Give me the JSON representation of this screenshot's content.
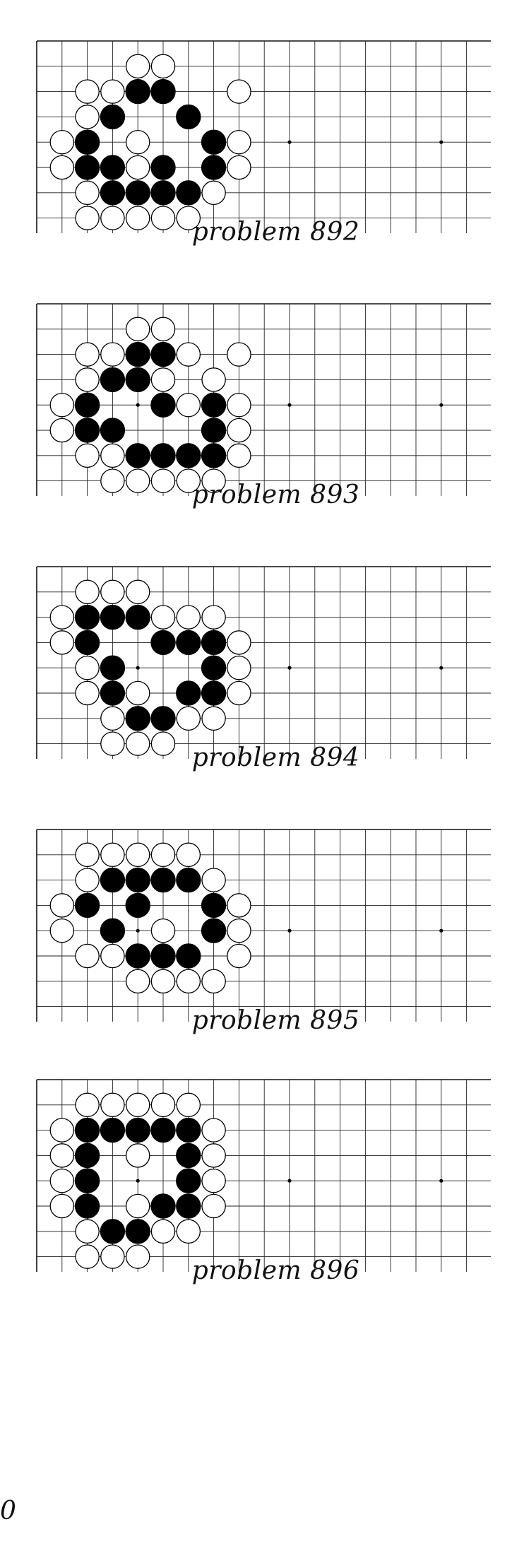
{
  "page_number": "0",
  "board": {
    "columns": 19,
    "visible_rows": 8,
    "edges": "top and left edges shown; board continues right and down",
    "star_point_columns": [
      4,
      10,
      16
    ],
    "star_point_row": 4
  },
  "problems": [
    {
      "caption": "problem 892",
      "black": [
        [
          4,
          2
        ],
        [
          5,
          2
        ],
        [
          3,
          3
        ],
        [
          6,
          3
        ],
        [
          2,
          4
        ],
        [
          7,
          4
        ],
        [
          2,
          5
        ],
        [
          3,
          5
        ],
        [
          5,
          5
        ],
        [
          7,
          5
        ],
        [
          3,
          6
        ],
        [
          4,
          6
        ],
        [
          5,
          6
        ],
        [
          6,
          6
        ]
      ],
      "white": [
        [
          4,
          1
        ],
        [
          5,
          1
        ],
        [
          2,
          2
        ],
        [
          3,
          2
        ],
        [
          8,
          2
        ],
        [
          2,
          3
        ],
        [
          1,
          4
        ],
        [
          4,
          4
        ],
        [
          8,
          4
        ],
        [
          1,
          5
        ],
        [
          4,
          5
        ],
        [
          8,
          5
        ],
        [
          2,
          6
        ],
        [
          7,
          6
        ],
        [
          2,
          7
        ],
        [
          3,
          7
        ],
        [
          4,
          7
        ],
        [
          5,
          7
        ],
        [
          6,
          7
        ]
      ]
    },
    {
      "caption": "problem 893",
      "black": [
        [
          4,
          2
        ],
        [
          5,
          2
        ],
        [
          3,
          3
        ],
        [
          4,
          3
        ],
        [
          2,
          4
        ],
        [
          5,
          4
        ],
        [
          7,
          4
        ],
        [
          2,
          5
        ],
        [
          3,
          5
        ],
        [
          7,
          5
        ],
        [
          4,
          6
        ],
        [
          5,
          6
        ],
        [
          6,
          6
        ],
        [
          7,
          6
        ]
      ],
      "white": [
        [
          4,
          1
        ],
        [
          5,
          1
        ],
        [
          2,
          2
        ],
        [
          3,
          2
        ],
        [
          6,
          2
        ],
        [
          8,
          2
        ],
        [
          2,
          3
        ],
        [
          5,
          3
        ],
        [
          7,
          3
        ],
        [
          1,
          4
        ],
        [
          6,
          4
        ],
        [
          8,
          4
        ],
        [
          1,
          5
        ],
        [
          8,
          5
        ],
        [
          2,
          6
        ],
        [
          3,
          6
        ],
        [
          8,
          6
        ],
        [
          3,
          7
        ],
        [
          4,
          7
        ],
        [
          5,
          7
        ],
        [
          6,
          7
        ],
        [
          7,
          7
        ]
      ]
    },
    {
      "caption": "problem 894",
      "black": [
        [
          2,
          2
        ],
        [
          3,
          2
        ],
        [
          4,
          2
        ],
        [
          2,
          3
        ],
        [
          5,
          3
        ],
        [
          6,
          3
        ],
        [
          7,
          3
        ],
        [
          3,
          4
        ],
        [
          7,
          4
        ],
        [
          3,
          5
        ],
        [
          6,
          5
        ],
        [
          7,
          5
        ],
        [
          4,
          6
        ],
        [
          5,
          6
        ]
      ],
      "white": [
        [
          2,
          1
        ],
        [
          3,
          1
        ],
        [
          4,
          1
        ],
        [
          1,
          2
        ],
        [
          5,
          2
        ],
        [
          6,
          2
        ],
        [
          7,
          2
        ],
        [
          1,
          3
        ],
        [
          8,
          3
        ],
        [
          2,
          4
        ],
        [
          8,
          4
        ],
        [
          2,
          5
        ],
        [
          4,
          5
        ],
        [
          8,
          5
        ],
        [
          3,
          6
        ],
        [
          6,
          6
        ],
        [
          7,
          6
        ],
        [
          3,
          7
        ],
        [
          4,
          7
        ],
        [
          5,
          7
        ]
      ]
    },
    {
      "caption": "problem 895",
      "black": [
        [
          3,
          2
        ],
        [
          4,
          2
        ],
        [
          5,
          2
        ],
        [
          6,
          2
        ],
        [
          2,
          3
        ],
        [
          4,
          3
        ],
        [
          7,
          3
        ],
        [
          3,
          4
        ],
        [
          7,
          4
        ],
        [
          4,
          5
        ],
        [
          5,
          5
        ],
        [
          6,
          5
        ]
      ],
      "white": [
        [
          2,
          1
        ],
        [
          3,
          1
        ],
        [
          4,
          1
        ],
        [
          5,
          1
        ],
        [
          6,
          1
        ],
        [
          2,
          2
        ],
        [
          7,
          2
        ],
        [
          1,
          3
        ],
        [
          8,
          3
        ],
        [
          1,
          4
        ],
        [
          5,
          4
        ],
        [
          8,
          4
        ],
        [
          2,
          5
        ],
        [
          3,
          5
        ],
        [
          8,
          5
        ],
        [
          4,
          6
        ],
        [
          5,
          6
        ],
        [
          6,
          6
        ],
        [
          7,
          6
        ]
      ]
    },
    {
      "caption": "problem 896",
      "black": [
        [
          2,
          2
        ],
        [
          3,
          2
        ],
        [
          4,
          2
        ],
        [
          5,
          2
        ],
        [
          6,
          2
        ],
        [
          2,
          3
        ],
        [
          6,
          3
        ],
        [
          2,
          4
        ],
        [
          6,
          4
        ],
        [
          2,
          5
        ],
        [
          5,
          5
        ],
        [
          6,
          5
        ],
        [
          3,
          6
        ],
        [
          4,
          6
        ]
      ],
      "white": [
        [
          2,
          1
        ],
        [
          3,
          1
        ],
        [
          4,
          1
        ],
        [
          5,
          1
        ],
        [
          6,
          1
        ],
        [
          1,
          2
        ],
        [
          7,
          2
        ],
        [
          1,
          3
        ],
        [
          4,
          3
        ],
        [
          7,
          3
        ],
        [
          1,
          4
        ],
        [
          7,
          4
        ],
        [
          1,
          5
        ],
        [
          4,
          5
        ],
        [
          7,
          5
        ],
        [
          2,
          6
        ],
        [
          5,
          6
        ],
        [
          6,
          6
        ],
        [
          2,
          7
        ],
        [
          3,
          7
        ],
        [
          4,
          7
        ]
      ]
    }
  ]
}
